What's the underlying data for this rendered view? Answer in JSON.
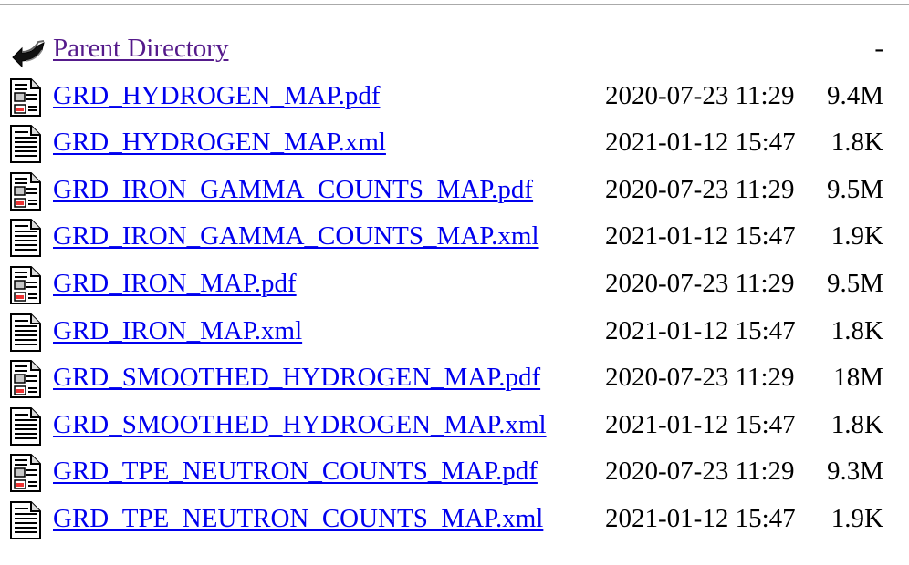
{
  "parent": {
    "label": "Parent Directory",
    "size": "-",
    "icon": "back-arrow-icon"
  },
  "files": [
    {
      "name": "GRD_HYDROGEN_MAP.pdf",
      "date": "2020-07-23 11:29",
      "size": "9.4M",
      "icon": "layout-document-icon"
    },
    {
      "name": "GRD_HYDROGEN_MAP.xml",
      "date": "2021-01-12 15:47",
      "size": "1.8K",
      "icon": "text-document-icon"
    },
    {
      "name": "GRD_IRON_GAMMA_COUNTS_MAP.pdf",
      "date": "2020-07-23 11:29",
      "size": "9.5M",
      "icon": "layout-document-icon"
    },
    {
      "name": "GRD_IRON_GAMMA_COUNTS_MAP.xml",
      "date": "2021-01-12 15:47",
      "size": "1.9K",
      "icon": "text-document-icon"
    },
    {
      "name": "GRD_IRON_MAP.pdf",
      "date": "2020-07-23 11:29",
      "size": "9.5M",
      "icon": "layout-document-icon"
    },
    {
      "name": "GRD_IRON_MAP.xml",
      "date": "2021-01-12 15:47",
      "size": "1.8K",
      "icon": "text-document-icon"
    },
    {
      "name": "GRD_SMOOTHED_HYDROGEN_MAP.pdf",
      "date": "2020-07-23 11:29",
      "size": "18M",
      "icon": "layout-document-icon"
    },
    {
      "name": "GRD_SMOOTHED_HYDROGEN_MAP.xml",
      "date": "2021-01-12 15:47",
      "size": "1.8K",
      "icon": "text-document-icon"
    },
    {
      "name": "GRD_TPE_NEUTRON_COUNTS_MAP.pdf",
      "date": "2020-07-23 11:29",
      "size": "9.3M",
      "icon": "layout-document-icon"
    },
    {
      "name": "GRD_TPE_NEUTRON_COUNTS_MAP.xml",
      "date": "2021-01-12 15:47",
      "size": "1.9K",
      "icon": "text-document-icon"
    }
  ],
  "colors": {
    "link": "#0000ee",
    "visited_link": "#551a8b",
    "rule": "#aaaaaa"
  }
}
